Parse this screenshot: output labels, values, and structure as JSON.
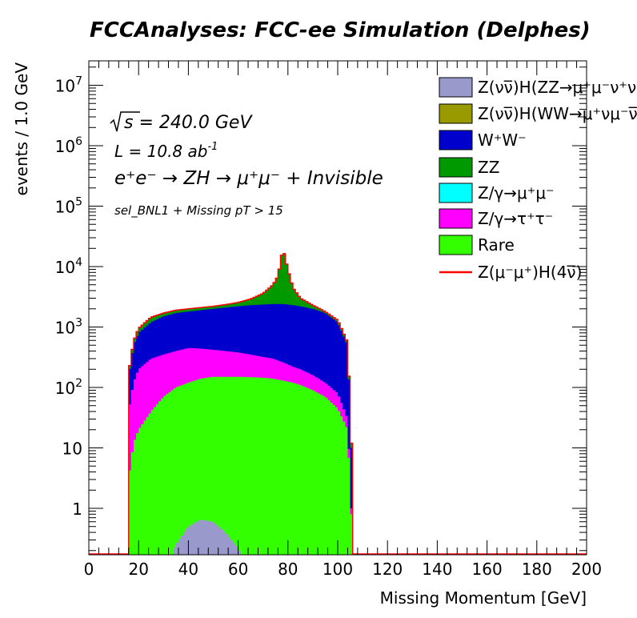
{
  "chart_data": {
    "type": "stacked-area-histogram",
    "title": "FCCAnalyses: FCC-ee Simulation (Delphes)",
    "xlabel": "Missing Momentum [GeV]",
    "ylabel": "events / 1.0 GeV",
    "xlim": [
      0,
      200
    ],
    "ylim": [
      0.15,
      20000000
    ],
    "y_scale": "log",
    "x_ticks": [
      "0",
      "20",
      "40",
      "60",
      "80",
      "100",
      "120",
      "140",
      "160",
      "180",
      "200"
    ],
    "y_ticks": [
      {
        "value": 1,
        "base": "1",
        "exp": ""
      },
      {
        "value": 10,
        "base": "10",
        "exp": ""
      },
      {
        "value": 100,
        "base": "10",
        "exp": "2"
      },
      {
        "value": 1000,
        "base": "10",
        "exp": "3"
      },
      {
        "value": 10000,
        "base": "10",
        "exp": "4"
      },
      {
        "value": 100000,
        "base": "10",
        "exp": "5"
      },
      {
        "value": 1000000,
        "base": "10",
        "exp": "6"
      },
      {
        "value": 10000000,
        "base": "10",
        "exp": "7"
      }
    ],
    "annotations": {
      "sqrt_s": "s = 240.0 GeV",
      "lumi": "L = 10.8 ab",
      "lumi_exp": "-1",
      "process": "e⁺e⁻ → ZH → μ⁺μ⁻ + Invisible",
      "selection": "sel_BNL1 + Missing pT > 15"
    },
    "legend_position": "top-right",
    "stack_order": [
      "Z(νν̅)H(ZZ→μ⁺μ⁻ν⁺ν⁻)",
      "Rare",
      "Z/γ→τ⁺τ⁻",
      "W⁺W⁻",
      "ZZ"
    ],
    "stacked_totals_at_x": {
      "x": [
        16,
        18,
        20,
        25,
        30,
        35,
        40,
        45,
        50,
        55,
        60,
        65,
        70,
        74,
        76,
        78,
        80,
        82,
        85,
        90,
        95,
        100,
        104,
        105.5
      ],
      "signal_hzz": [
        0,
        0,
        0,
        0,
        0,
        0.25,
        0.5,
        0.65,
        0.6,
        0.4,
        0.22,
        0,
        0,
        0,
        0,
        0,
        0,
        0,
        0,
        0,
        0,
        0,
        0,
        0
      ],
      "rare_cumulative": [
        3,
        12,
        20,
        40,
        70,
        100,
        120,
        140,
        150,
        150,
        150,
        148,
        145,
        140,
        135,
        130,
        125,
        120,
        110,
        90,
        70,
        45,
        20,
        0.8
      ],
      "tautau_cumulative": [
        40,
        120,
        200,
        300,
        350,
        400,
        450,
        440,
        420,
        400,
        380,
        350,
        320,
        300,
        280,
        260,
        240,
        220,
        200,
        160,
        120,
        80,
        30,
        1
      ],
      "ww_cumulative": [
        150,
        500,
        800,
        1200,
        1500,
        1700,
        1800,
        1900,
        2000,
        2100,
        2200,
        2300,
        2350,
        2400,
        2400,
        2400,
        2350,
        2300,
        2200,
        2000,
        1700,
        1200,
        500,
        10
      ],
      "zz_cumulative": [
        170,
        580,
        950,
        1450,
        1700,
        1900,
        2000,
        2100,
        2200,
        2350,
        2550,
        2900,
        3600,
        5000,
        7000,
        20000,
        9000,
        4500,
        3000,
        2300,
        1800,
        1300,
        550,
        12
      ]
    },
    "series": [
      {
        "name": "Z(νν̅)H(ZZ→μ⁺μ⁻ν⁺ν⁻)",
        "color": "#9999cc",
        "style": "fill"
      },
      {
        "name": "Z(νν̅)H(WW→μ⁺νμ⁻ν̅)",
        "color": "#999900",
        "style": "fill"
      },
      {
        "name": "W⁺W⁻",
        "color": "#0000cc",
        "style": "fill"
      },
      {
        "name": "ZZ",
        "color": "#009900",
        "style": "fill"
      },
      {
        "name": "Z/γ→μ⁺μ⁻",
        "color": "#00ffff",
        "style": "fill"
      },
      {
        "name": "Z/γ→τ⁺τ⁻",
        "color": "#ff00ff",
        "style": "fill"
      },
      {
        "name": "Rare",
        "color": "#33ff00",
        "style": "fill"
      },
      {
        "name": "Z(μ⁻μ⁺)H(4ν̅)",
        "color": "#ff0000",
        "style": "line"
      }
    ]
  }
}
